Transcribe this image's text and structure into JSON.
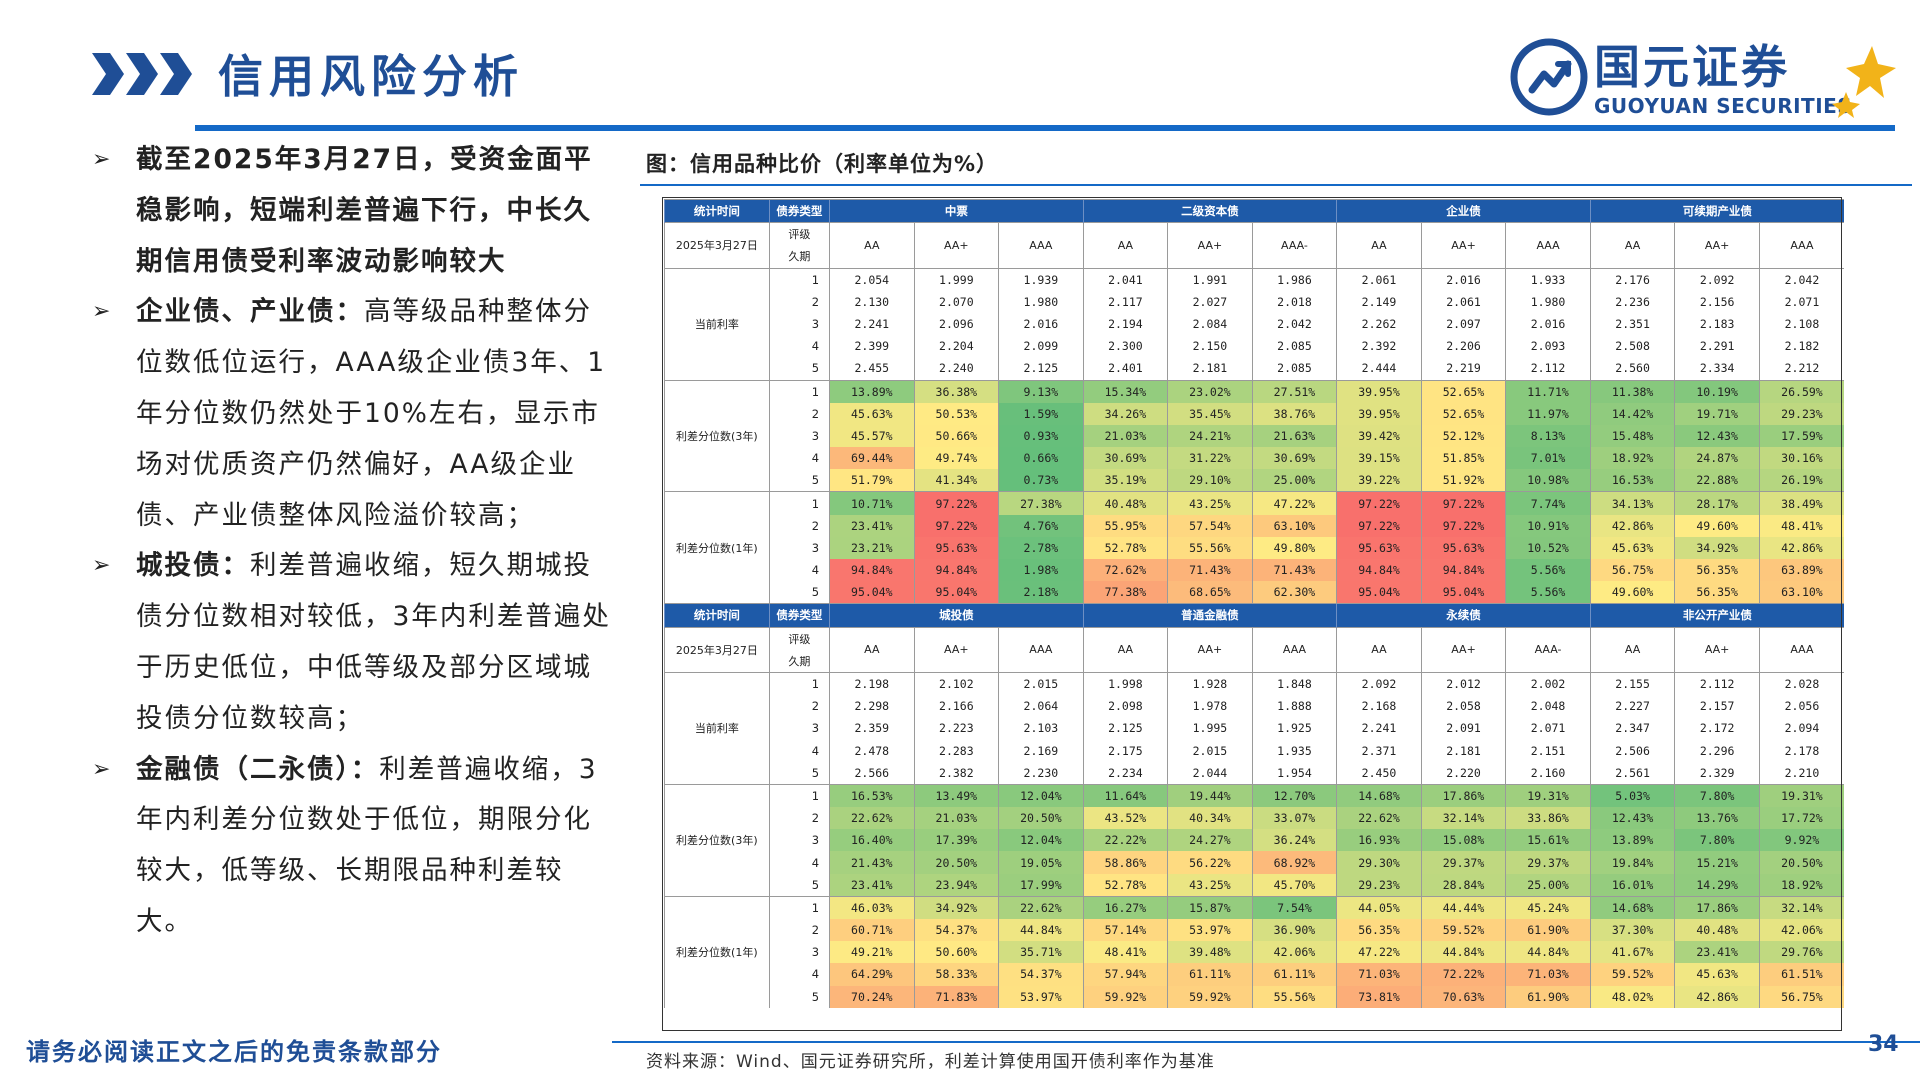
{
  "header": {
    "title": "信用风险分析",
    "logo_cn": "国元证券",
    "logo_en": "GUOYUAN SECURITIES"
  },
  "bullets": [
    {
      "bold": "截至2025年3月27日，受资金面平稳影响，短端利差普遍下行，中长久期信用债受利率波动影响较大",
      "rest": ""
    },
    {
      "bold": "企业债、产业债：",
      "rest": "高等级品种整体分位数低位运行，AAA级企业债3年、1年分位数仍然处于10%左右，显示市场对优质资产仍然偏好，AA级企业债、产业债整体风险溢价较高；"
    },
    {
      "bold": "城投债：",
      "rest": "利差普遍收缩，短久期城投债分位数相对较低，3年内利差普遍处于历史低位，中低等级及部分区域城投债分位数较高；"
    },
    {
      "bold": "金融债（二永债）：",
      "rest": "利差普遍收缩，3年内利差分位数处于低位，期限分化较大，低等级、长期限品种利差较大。"
    }
  ],
  "figure": {
    "caption": "图：信用品种比价（利率单位为%）"
  },
  "table": {
    "blocks": [
      {
        "hdr_time": "统计时间",
        "hdr_type": "债券类型",
        "sectors": [
          "中票",
          "二级资本债",
          "企业债",
          "可续期产业债"
        ],
        "date": "2025年3月27日",
        "label_rating": "评级",
        "label_term": "久期",
        "ratings": [
          [
            "AA",
            "AA+",
            "AAA"
          ],
          [
            "AA",
            "AA+",
            "AAA-"
          ],
          [
            "AA",
            "AA+",
            "AAA"
          ],
          [
            "AA",
            "AA+",
            "AAA"
          ]
        ],
        "groups": [
          {
            "label": "当前利率",
            "pct": false,
            "rows": [
              [
                "2.054",
                "1.999",
                "1.939",
                "2.041",
                "1.991",
                "1.986",
                "2.061",
                "2.016",
                "1.933",
                "2.176",
                "2.092",
                "2.042"
              ],
              [
                "2.130",
                "2.070",
                "1.980",
                "2.117",
                "2.027",
                "2.018",
                "2.149",
                "2.061",
                "1.980",
                "2.236",
                "2.156",
                "2.071"
              ],
              [
                "2.241",
                "2.096",
                "2.016",
                "2.194",
                "2.084",
                "2.042",
                "2.262",
                "2.097",
                "2.016",
                "2.351",
                "2.183",
                "2.108"
              ],
              [
                "2.399",
                "2.204",
                "2.099",
                "2.300",
                "2.150",
                "2.085",
                "2.392",
                "2.206",
                "2.093",
                "2.508",
                "2.291",
                "2.182"
              ],
              [
                "2.455",
                "2.240",
                "2.125",
                "2.401",
                "2.181",
                "2.085",
                "2.444",
                "2.219",
                "2.112",
                "2.560",
                "2.334",
                "2.212"
              ]
            ]
          },
          {
            "label": "利差分位数(3年)",
            "pct": true,
            "rows": [
              [
                "13.89%",
                "36.38%",
                "9.13%",
                "15.34%",
                "23.02%",
                "27.51%",
                "39.95%",
                "52.65%",
                "11.71%",
                "11.38%",
                "10.19%",
                "26.59%"
              ],
              [
                "45.63%",
                "50.53%",
                "1.59%",
                "34.26%",
                "35.45%",
                "38.76%",
                "39.95%",
                "52.65%",
                "11.97%",
                "14.42%",
                "19.71%",
                "29.23%"
              ],
              [
                "45.57%",
                "50.66%",
                "0.93%",
                "21.03%",
                "24.21%",
                "21.63%",
                "39.42%",
                "52.12%",
                "8.13%",
                "15.48%",
                "12.43%",
                "17.59%"
              ],
              [
                "69.44%",
                "49.74%",
                "0.66%",
                "30.69%",
                "31.22%",
                "30.69%",
                "39.15%",
                "51.85%",
                "7.01%",
                "18.92%",
                "24.87%",
                "30.16%"
              ],
              [
                "51.79%",
                "41.34%",
                "0.73%",
                "35.19%",
                "29.10%",
                "25.00%",
                "39.22%",
                "51.92%",
                "10.98%",
                "16.53%",
                "22.88%",
                "26.19%"
              ]
            ]
          },
          {
            "label": "利差分位数(1年)",
            "pct": true,
            "rows": [
              [
                "10.71%",
                "97.22%",
                "27.38%",
                "40.48%",
                "43.25%",
                "47.22%",
                "97.22%",
                "97.22%",
                "7.74%",
                "34.13%",
                "28.17%",
                "38.49%"
              ],
              [
                "23.41%",
                "97.22%",
                "4.76%",
                "55.95%",
                "57.54%",
                "63.10%",
                "97.22%",
                "97.22%",
                "10.91%",
                "42.86%",
                "49.60%",
                "48.41%"
              ],
              [
                "23.21%",
                "95.63%",
                "2.78%",
                "52.78%",
                "55.56%",
                "49.80%",
                "95.63%",
                "95.63%",
                "10.52%",
                "45.63%",
                "34.92%",
                "42.86%"
              ],
              [
                "94.84%",
                "94.84%",
                "1.98%",
                "72.62%",
                "71.43%",
                "71.43%",
                "94.84%",
                "94.84%",
                "5.56%",
                "56.75%",
                "56.35%",
                "63.89%"
              ],
              [
                "95.04%",
                "95.04%",
                "2.18%",
                "77.38%",
                "68.65%",
                "62.30%",
                "95.04%",
                "95.04%",
                "5.56%",
                "49.60%",
                "56.35%",
                "63.10%"
              ]
            ]
          }
        ]
      },
      {
        "hdr_time": "统计时间",
        "hdr_type": "债券类型",
        "sectors": [
          "城投债",
          "普通金融债",
          "永续债",
          "非公开产业债"
        ],
        "date": "2025年3月27日",
        "label_rating": "评级",
        "label_term": "久期",
        "ratings": [
          [
            "AA",
            "AA+",
            "AAA"
          ],
          [
            "AA",
            "AA+",
            "AAA"
          ],
          [
            "AA",
            "AA+",
            "AAA-"
          ],
          [
            "AA",
            "AA+",
            "AAA"
          ]
        ],
        "groups": [
          {
            "label": "当前利率",
            "pct": false,
            "rows": [
              [
                "2.198",
                "2.102",
                "2.015",
                "1.998",
                "1.928",
                "1.848",
                "2.092",
                "2.012",
                "2.002",
                "2.155",
                "2.112",
                "2.028"
              ],
              [
                "2.298",
                "2.166",
                "2.064",
                "2.098",
                "1.978",
                "1.888",
                "2.168",
                "2.058",
                "2.048",
                "2.227",
                "2.157",
                "2.056"
              ],
              [
                "2.359",
                "2.223",
                "2.103",
                "2.125",
                "1.995",
                "1.925",
                "2.241",
                "2.091",
                "2.071",
                "2.347",
                "2.172",
                "2.094"
              ],
              [
                "2.478",
                "2.283",
                "2.169",
                "2.175",
                "2.015",
                "1.935",
                "2.371",
                "2.181",
                "2.151",
                "2.506",
                "2.296",
                "2.178"
              ],
              [
                "2.566",
                "2.382",
                "2.230",
                "2.234",
                "2.044",
                "1.954",
                "2.450",
                "2.220",
                "2.160",
                "2.561",
                "2.329",
                "2.210"
              ]
            ]
          },
          {
            "label": "利差分位数(3年)",
            "pct": true,
            "rows": [
              [
                "16.53%",
                "13.49%",
                "12.04%",
                "11.64%",
                "19.44%",
                "12.70%",
                "14.68%",
                "17.86%",
                "19.31%",
                "5.03%",
                "7.80%",
                "19.31%"
              ],
              [
                "22.62%",
                "21.03%",
                "20.50%",
                "43.52%",
                "40.34%",
                "33.07%",
                "22.62%",
                "32.14%",
                "33.86%",
                "12.43%",
                "13.76%",
                "17.72%"
              ],
              [
                "16.40%",
                "17.39%",
                "12.04%",
                "22.22%",
                "24.27%",
                "36.24%",
                "16.93%",
                "15.08%",
                "15.61%",
                "13.89%",
                "7.80%",
                "9.92%"
              ],
              [
                "21.43%",
                "20.50%",
                "19.05%",
                "58.86%",
                "56.22%",
                "68.92%",
                "29.30%",
                "29.37%",
                "29.37%",
                "19.84%",
                "15.21%",
                "20.50%"
              ],
              [
                "23.41%",
                "23.94%",
                "17.99%",
                "52.78%",
                "43.25%",
                "45.70%",
                "29.23%",
                "28.84%",
                "25.00%",
                "16.01%",
                "14.29%",
                "18.92%"
              ]
            ]
          },
          {
            "label": "利差分位数(1年)",
            "pct": true,
            "rows": [
              [
                "46.03%",
                "34.92%",
                "22.62%",
                "16.27%",
                "15.87%",
                "7.54%",
                "44.05%",
                "44.44%",
                "45.24%",
                "14.68%",
                "17.86%",
                "32.14%"
              ],
              [
                "60.71%",
                "54.37%",
                "44.84%",
                "57.14%",
                "53.97%",
                "36.90%",
                "56.35%",
                "59.52%",
                "61.90%",
                "37.30%",
                "40.48%",
                "42.06%"
              ],
              [
                "49.21%",
                "50.60%",
                "35.71%",
                "48.41%",
                "39.48%",
                "42.06%",
                "47.22%",
                "44.84%",
                "44.84%",
                "41.67%",
                "23.41%",
                "29.76%"
              ],
              [
                "64.29%",
                "58.33%",
                "54.37%",
                "57.94%",
                "61.11%",
                "61.11%",
                "71.03%",
                "72.22%",
                "71.03%",
                "59.52%",
                "45.63%",
                "61.51%"
              ],
              [
                "70.24%",
                "71.83%",
                "53.97%",
                "59.92%",
                "59.92%",
                "55.56%",
                "73.81%",
                "70.63%",
                "61.90%",
                "48.02%",
                "42.86%",
                "56.75%"
              ]
            ]
          }
        ]
      }
    ]
  },
  "footer": {
    "disclaimer": "请务必阅读正文之后的免责条款部分",
    "source": "资料来源：Wind、国元证券研究所，利差计算使用国开债利率作为基准",
    "page": "34"
  },
  "colors": {
    "brand_blue": "#1f4e96",
    "accent_blue": "#1469c7",
    "header_blue": "#1e5aa8",
    "heat_low": "#63be7b",
    "heat_mid": "#ffeb84",
    "heat_high": "#f8696b"
  },
  "icons": {
    "chevrons": "triple-chevron-icon",
    "logo": "guoyuan-logo-icon",
    "star": "star-icon"
  }
}
